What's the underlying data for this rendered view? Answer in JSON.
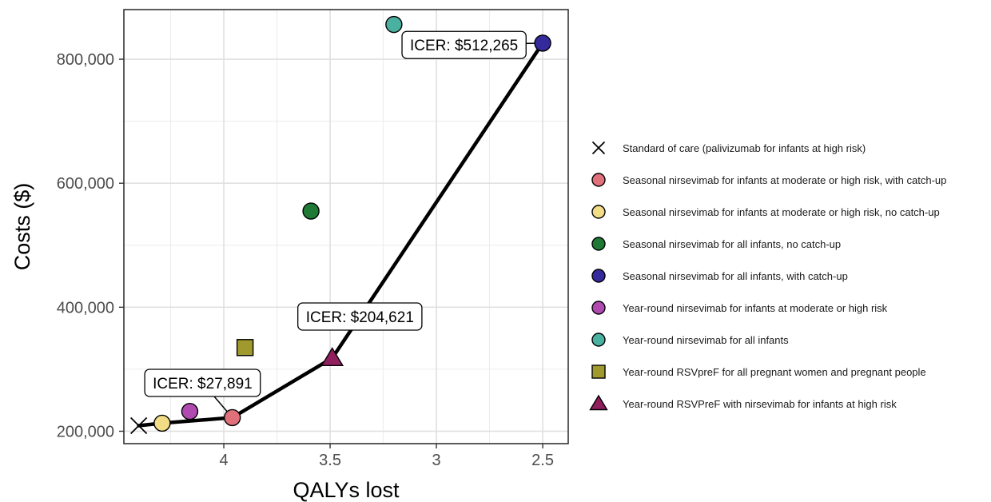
{
  "chart_data": {
    "type": "scatter",
    "xlabel": "QALYs lost",
    "ylabel": "Costs ($)",
    "x_reversed": true,
    "xlim": [
      4.47,
      2.38
    ],
    "ylim": [
      180000,
      880000
    ],
    "x_ticks": [
      {
        "value": 4,
        "label": "4"
      },
      {
        "value": 3.5,
        "label": "3.5"
      },
      {
        "value": 3,
        "label": "3"
      },
      {
        "value": 2.5,
        "label": "2.5"
      }
    ],
    "y_ticks": [
      {
        "value": 200000,
        "label": "200,000"
      },
      {
        "value": 400000,
        "label": "400,000"
      },
      {
        "value": 600000,
        "label": "600,000"
      },
      {
        "value": 800000,
        "label": "800,000"
      }
    ],
    "grid": true,
    "legend_position": "right",
    "series": [
      {
        "name": "Standard of care (palivizumab for infants at high risk)",
        "shape": "cross",
        "color": "#000000",
        "x": 4.4,
        "y": 209000
      },
      {
        "name": "Seasonal nirsevimab for infants at moderate or high risk, with catch-up",
        "shape": "circle",
        "color": "#E0707A",
        "x": 3.96,
        "y": 222000
      },
      {
        "name": "Seasonal nirsevimab for infants at moderate or high risk, no catch-up",
        "shape": "circle",
        "color": "#F2DC85",
        "x": 4.29,
        "y": 213000
      },
      {
        "name": "Seasonal nirsevimab for all infants, no catch-up",
        "shape": "circle",
        "color": "#1E7A34",
        "x": 3.59,
        "y": 555000
      },
      {
        "name": "Seasonal nirsevimab for all infants, with catch-up",
        "shape": "circle",
        "color": "#352A9C",
        "x": 2.5,
        "y": 826000
      },
      {
        "name": "Year-round nirsevimab for infants at moderate or high risk",
        "shape": "circle",
        "color": "#B04AB0",
        "x": 4.16,
        "y": 232000
      },
      {
        "name": "Year-round nirsevimab for all infants",
        "shape": "circle",
        "color": "#4AB0A0",
        "x": 3.2,
        "y": 856000
      },
      {
        "name": "Year-round RSVpreF for all pregnant women and pregnant people",
        "shape": "square",
        "color": "#A09A2E",
        "x": 3.9,
        "y": 335000
      },
      {
        "name": "Year-round RSVPreF with nirsevimab for infants at high risk",
        "shape": "triangle",
        "color": "#8E1E5C",
        "x": 3.49,
        "y": 318000
      }
    ],
    "frontier": {
      "x": [
        4.4,
        4.29,
        3.96,
        3.49,
        2.5
      ],
      "y": [
        209000,
        213000,
        222000,
        318000,
        826000
      ]
    },
    "annotations": [
      {
        "text": "ICER: $27,891",
        "x": 4.1,
        "y": 278000,
        "target_x": 3.96,
        "target_y": 222000
      },
      {
        "text": "ICER: $204,621",
        "x": 3.36,
        "y": 385000,
        "target_x": 3.49,
        "target_y": 318000
      },
      {
        "text": "ICER: $512,265",
        "x": 2.87,
        "y": 823000,
        "target_x": 2.5,
        "target_y": 826000
      }
    ]
  }
}
